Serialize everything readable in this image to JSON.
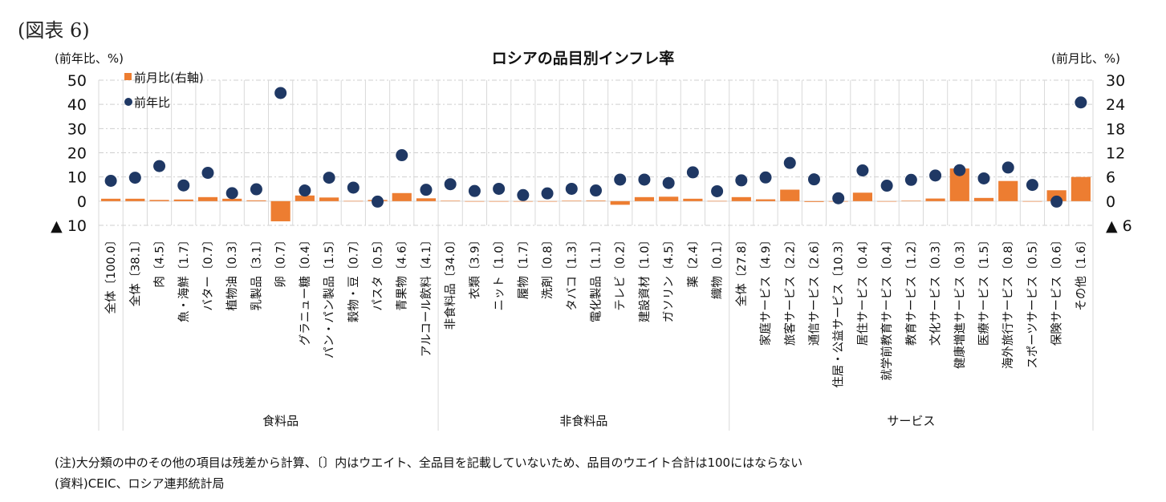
{
  "figure_label": "(図表 6)",
  "left_axis_unit": "(前年比、%)",
  "right_axis_unit": "(前月比、%)",
  "notes": [
    "(注)大分類の中のその他の項目は残差から計算、〔〕内はウエイト、全品目を記載していないため、品目のウエイト合計は100にはならない",
    "(資料)CEIC、ロシア連邦統計局"
  ],
  "colors": {
    "yoy": "#1f3864",
    "mom": "#ed7d31",
    "grid": "#d9d9d9",
    "gridline_dash": "#cfcfcf"
  },
  "chart_data": {
    "type": "bar",
    "title": "ロシアの品目別インフレ率",
    "xlabel": "",
    "ylabel": "(前年比、%)",
    "ylabel_right": "(前月比、%)",
    "ylim": [
      -10,
      50
    ],
    "ylim_right": [
      -6,
      30
    ],
    "yticks": [
      50,
      40,
      30,
      20,
      10,
      0,
      -10
    ],
    "ytick_labels": [
      "50",
      "40",
      "30",
      "20",
      "10",
      "0",
      "▲ 10"
    ],
    "yticks_right": [
      30,
      24,
      18,
      12,
      6,
      0,
      -6
    ],
    "ytick_labels_right": [
      "30",
      "24",
      "18",
      "12",
      "6",
      "0",
      "▲ 6"
    ],
    "grid": true,
    "legend_position": "top-left",
    "categories": [
      "全体〔100.0〕",
      "全体〔38.1〕",
      "肉〔4.5〕",
      "魚・海鮮〔1.7〕",
      "バター〔0.7〕",
      "植物油〔0.3〕",
      "乳製品〔3.1〕",
      "卵〔0.7〕",
      "グラニュー糖〔0.4〕",
      "パン・パン製品〔1.5〕",
      "穀物・豆〔0.7〕",
      "パスタ〔0.5〕",
      "青果物〔4.6〕",
      "アルコール飲料〔4.1〕",
      "非食料品〔34.0〕",
      "衣類〔3.9〕",
      "ニット〔1.0〕",
      "履物〔1.7〕",
      "洗剤〔0.8〕",
      "タバコ〔1.3〕",
      "電化製品〔1.1〕",
      "テレビ〔0.2〕",
      "建設資材〔1.0〕",
      "ガソリン〔4.5〕",
      "薬〔2.4〕",
      "織物〔0.1〕",
      "全体〔27.8〕",
      "家庭サービス〔4.9〕",
      "旅客サービス〔2.2〕",
      "通信サービス〔2.6〕",
      "住居・公益サービス〔10.3〕",
      "居住サービス〔0.4〕",
      "就学前教育サービス〔0.4〕",
      "教育サービス〔1.2〕",
      "文化サービス〔0.3〕",
      "健康増進サービス〔0.3〕",
      "医療サービス〔1.5〕",
      "海外旅行サービス〔0.8〕",
      "スポーツサービス〔0.5〕",
      "保険サービス〔0.6〕",
      "その他〔1.6〕"
    ],
    "groups": [
      {
        "label": "",
        "start": 0,
        "end": 0
      },
      {
        "label": "食料品",
        "start": 1,
        "end": 13
      },
      {
        "label": "非食料品",
        "start": 14,
        "end": 25
      },
      {
        "label": "サービス",
        "start": 26,
        "end": 40
      }
    ],
    "series": [
      {
        "name": "前月比(右軸)",
        "type": "bar",
        "axis": "right",
        "values": [
          0.6,
          0.6,
          0.3,
          0.4,
          1.0,
          0.6,
          0.2,
          -5.0,
          1.4,
          0.9,
          0.05,
          0.3,
          2.0,
          0.7,
          0.1,
          0.0,
          0.0,
          -0.1,
          0.0,
          0.1,
          0.15,
          -0.9,
          1.0,
          1.1,
          0.6,
          0.05,
          1.0,
          0.45,
          2.85,
          -0.2,
          0.0,
          2.1,
          0.0,
          0.1,
          0.65,
          8.1,
          0.8,
          5.0,
          0.0,
          2.7,
          6.0
        ]
      },
      {
        "name": "前年比",
        "type": "scatter",
        "axis": "left",
        "values": [
          8.4,
          9.7,
          14.5,
          6.5,
          11.7,
          3.3,
          4.9,
          44.7,
          4.4,
          9.7,
          5.6,
          -0.2,
          19.0,
          4.7,
          7.0,
          4.2,
          5.1,
          2.5,
          3.2,
          5.1,
          4.4,
          8.9,
          8.9,
          7.5,
          11.9,
          4.1,
          8.6,
          9.8,
          15.8,
          9.0,
          1.2,
          12.7,
          6.4,
          8.8,
          10.6,
          12.8,
          9.4,
          13.9,
          6.7,
          -0.2,
          40.8
        ]
      }
    ]
  }
}
